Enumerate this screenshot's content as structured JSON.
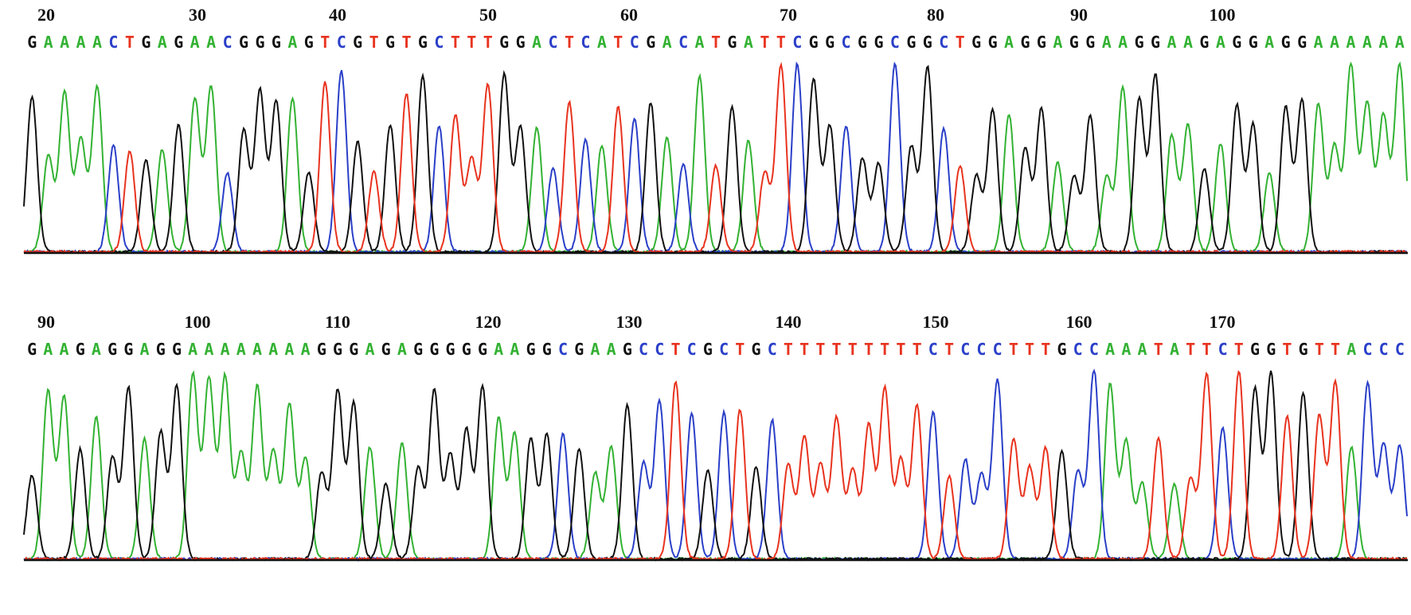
{
  "colors": {
    "A": "#33b233",
    "C": "#2a3fc8",
    "G": "#111111",
    "T": "#e8331f",
    "axis": "#111111"
  },
  "chart_data": [
    {
      "type": "line",
      "title": "",
      "xlabel": "",
      "ylabel": "",
      "tick_labels": [
        "20",
        "30",
        "40",
        "50",
        "60",
        "70",
        "80",
        "90",
        "100"
      ],
      "sequence": "GAAAACTGAGAACGGGAGTCGTGTGCTTTGGACTCATCGACATGATTCGGCGGCGGCTGGAGGAGGAAGGAAGAGGAGGAAAAAA",
      "ylim": [
        0,
        100
      ],
      "legend": "none",
      "grid": false
    },
    {
      "type": "line",
      "title": "",
      "xlabel": "",
      "ylabel": "",
      "tick_labels": [
        "90",
        "100",
        "110",
        "120",
        "130",
        "140",
        "150",
        "160",
        "170"
      ],
      "sequence": "GAAGAGGAGGAAAAAAAAGGGAGAGGGGGAAGGCGAAGCCTCGCTGCTTTTTTTTTCTCCCTTTGCCAAATATTCTGGTGTTACCC",
      "ylim": [
        0,
        100
      ],
      "legend": "none",
      "grid": false
    }
  ]
}
